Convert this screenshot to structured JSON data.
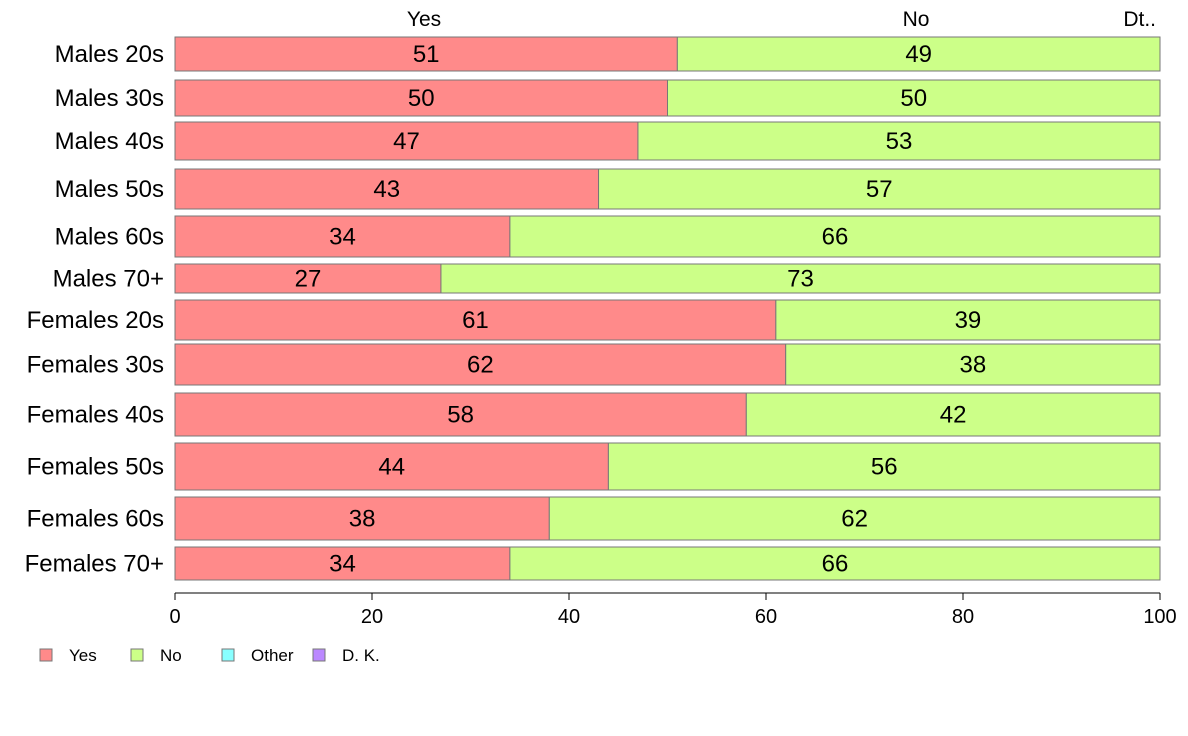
{
  "chart_data": {
    "type": "bar",
    "orientation": "horizontal",
    "stacked": true,
    "xlim": [
      0,
      100
    ],
    "x_ticks": [
      0,
      20,
      40,
      60,
      80,
      100
    ],
    "categories": [
      "Males 20s",
      "Males 30s",
      "Males 40s",
      "Males 50s",
      "Males 60s",
      "Males 70+",
      "Females 20s",
      "Females 30s",
      "Females 40s",
      "Females 50s",
      "Females 60s",
      "Females 70+"
    ],
    "series": [
      {
        "name": "Yes",
        "color": "#ff8a8a",
        "values": [
          51,
          50,
          47,
          43,
          34,
          27,
          61,
          62,
          58,
          44,
          38,
          34
        ]
      },
      {
        "name": "No",
        "color": "#ccff88",
        "values": [
          49,
          50,
          53,
          57,
          66,
          73,
          39,
          38,
          42,
          56,
          62,
          66
        ]
      },
      {
        "name": "Other",
        "color": "#88ffff",
        "values": [
          0,
          0,
          0,
          0,
          0,
          0,
          0,
          0,
          0,
          0,
          0,
          0
        ]
      },
      {
        "name": "D. K.",
        "color": "#bb88ff",
        "values": [
          0,
          0,
          0,
          0,
          0,
          0,
          0,
          0,
          0,
          0,
          0,
          0
        ]
      }
    ],
    "top_labels": [
      "Yes",
      "No",
      "Dt.."
    ],
    "legend": {
      "position": "bottom-left",
      "items": [
        "Yes",
        "No",
        "Other",
        "D. K."
      ]
    },
    "grid": false
  }
}
